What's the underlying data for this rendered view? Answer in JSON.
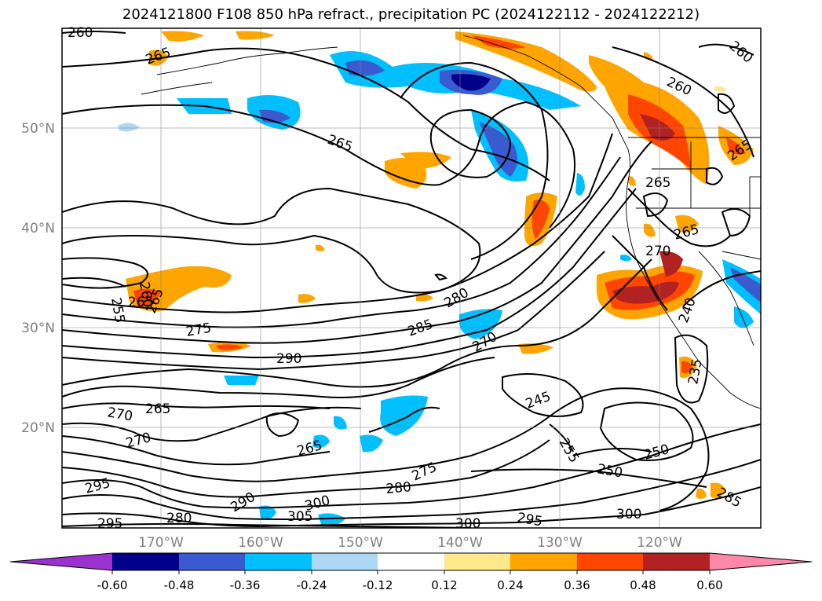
{
  "title": "2024121800 F108 850 hPa refract., precipitation PC (2024122112 - 2024122212)",
  "lat_labels": [
    "50°N",
    "40°N",
    "30°N",
    "20°N"
  ],
  "lon_labels": [
    "170°W",
    "160°W",
    "150°W",
    "140°W",
    "130°W",
    "120°W"
  ],
  "colorbar": {
    "colors": [
      "#9a32cd",
      "#00008b",
      "#3a5bcf",
      "#00bfff",
      "#add8f5",
      "#ffffff",
      "#ffe98a",
      "#ffa500",
      "#ff4500",
      "#b22222",
      "#ff88aa"
    ],
    "tick_labels": [
      "-0.60",
      "-0.48",
      "-0.36",
      "-0.24",
      "-0.12",
      "0.12",
      "0.24",
      "0.36",
      "0.48",
      "0.60"
    ]
  },
  "contour_labels": [
    "260",
    "265",
    "265",
    "260",
    "260",
    "265",
    "265",
    "265",
    "270",
    "265",
    "255",
    "260",
    "265",
    "275",
    "290",
    "285",
    "280",
    "270",
    "240",
    "235",
    "245",
    "265",
    "270",
    "270",
    "265",
    "295",
    "255",
    "250",
    "250",
    "280",
    "275",
    "290",
    "300",
    "305",
    "300",
    "295",
    "300",
    "295",
    "280",
    "285"
  ]
}
